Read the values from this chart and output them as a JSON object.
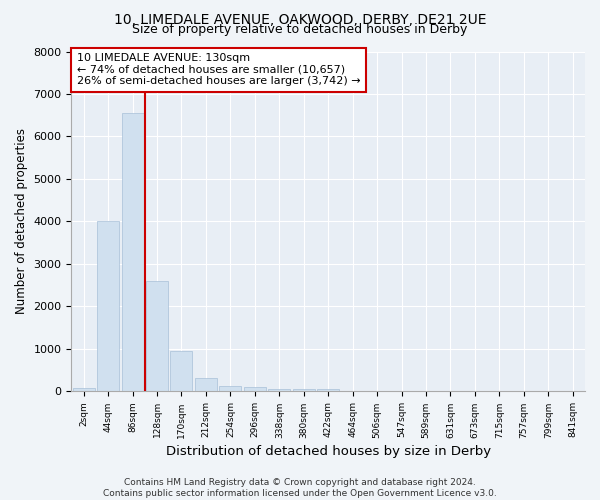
{
  "title1": "10, LIMEDALE AVENUE, OAKWOOD, DERBY, DE21 2UE",
  "title2": "Size of property relative to detached houses in Derby",
  "xlabel": "Distribution of detached houses by size in Derby",
  "ylabel": "Number of detached properties",
  "bin_labels": [
    "2sqm",
    "44sqm",
    "86sqm",
    "128sqm",
    "170sqm",
    "212sqm",
    "254sqm",
    "296sqm",
    "338sqm",
    "380sqm",
    "422sqm",
    "464sqm",
    "506sqm",
    "547sqm",
    "589sqm",
    "631sqm",
    "673sqm",
    "715sqm",
    "757sqm",
    "799sqm",
    "841sqm"
  ],
  "bar_values": [
    75,
    4000,
    6550,
    2600,
    950,
    320,
    140,
    95,
    65,
    55,
    55,
    0,
    0,
    0,
    0,
    0,
    0,
    0,
    0,
    0,
    0
  ],
  "bar_color": "#d0e0ef",
  "bar_edgecolor": "#a8c0d8",
  "vline_x": 2.5,
  "vline_color": "#cc0000",
  "annotation_text": "10 LIMEDALE AVENUE: 130sqm\n← 74% of detached houses are smaller (10,657)\n26% of semi-detached houses are larger (3,742) →",
  "annotation_box_color": "#ffffff",
  "annotation_box_edge": "#cc0000",
  "ylim": [
    0,
    8000
  ],
  "yticks": [
    0,
    1000,
    2000,
    3000,
    4000,
    5000,
    6000,
    7000,
    8000
  ],
  "bg_color": "#f0f4f8",
  "plot_bg_color": "#e8eef5",
  "footer": "Contains HM Land Registry data © Crown copyright and database right 2024.\nContains public sector information licensed under the Open Government Licence v3.0.",
  "title1_fontsize": 10,
  "title2_fontsize": 9,
  "xlabel_fontsize": 9.5,
  "ylabel_fontsize": 8.5,
  "footer_fontsize": 6.5,
  "annot_fontsize": 8
}
